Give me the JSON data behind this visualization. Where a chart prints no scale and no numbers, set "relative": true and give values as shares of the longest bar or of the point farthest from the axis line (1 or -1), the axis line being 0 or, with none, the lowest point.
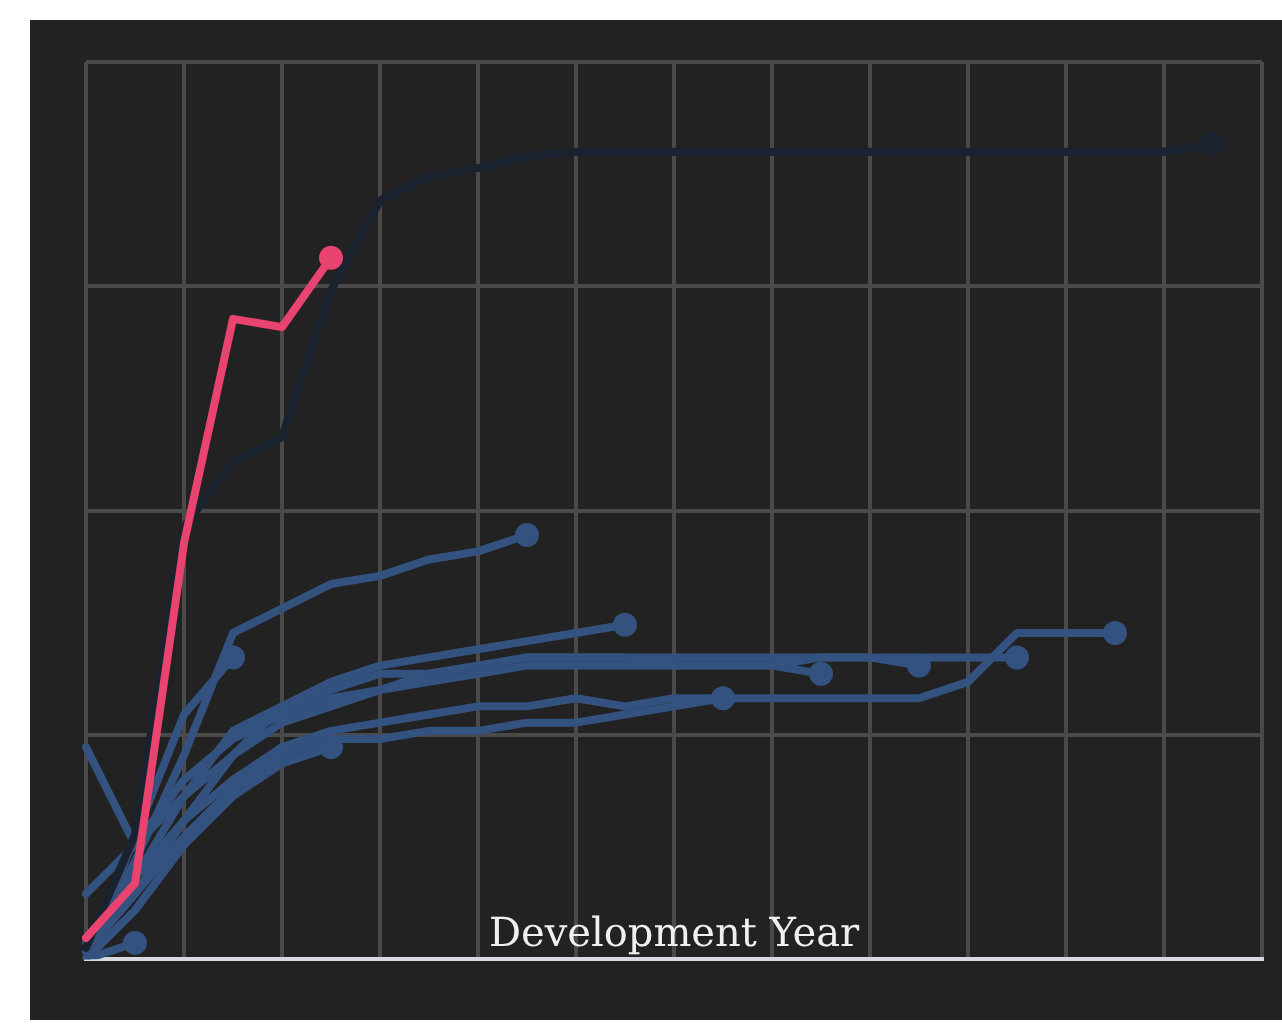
{
  "chart_data": {
    "type": "line",
    "relative": true,
    "xlabel": "Development Year",
    "grid": true,
    "legend": false,
    "line_style": "solid",
    "categories": [
      null,
      null,
      null,
      null,
      null,
      null,
      null,
      null,
      null,
      null,
      null,
      null,
      null,
      null,
      null,
      null,
      null,
      null,
      null,
      null,
      null,
      null,
      null,
      null,
      null
    ],
    "series": [
      {
        "color": "#34527f",
        "values": [
          0.01,
          0.12,
          0.25,
          0.4,
          0.43,
          0.46,
          0.47,
          0.49,
          0.5,
          0.52,
          null,
          null,
          null,
          null,
          null,
          null,
          null,
          null,
          null,
          null,
          null,
          null,
          null,
          null,
          null
        ]
      },
      {
        "color": "#34527f",
        "values": [
          0.01,
          0.08,
          0.17,
          0.25,
          0.31,
          0.34,
          0.36,
          0.37,
          0.38,
          0.39,
          0.4,
          0.41,
          null,
          null,
          null,
          null,
          null,
          null,
          null,
          null,
          null,
          null,
          null,
          null,
          null
        ]
      },
      {
        "color": "#34527f",
        "values": [
          0.0,
          0.15,
          0.3,
          0.37,
          null,
          null,
          null,
          null,
          null,
          null,
          null,
          null,
          null,
          null,
          null,
          null,
          null,
          null,
          null,
          null,
          null,
          null,
          null,
          null,
          null
        ]
      },
      {
        "color": "#34527f",
        "values": [
          0.0,
          0.02,
          null,
          null,
          null,
          null,
          null,
          null,
          null,
          null,
          null,
          null,
          null,
          null,
          null,
          null,
          null,
          null,
          null,
          null,
          null,
          null,
          null,
          null,
          null
        ]
      },
      {
        "color": "#34527f",
        "values": [
          0.0,
          0.06,
          0.14,
          0.2,
          0.24,
          0.26,
          null,
          null,
          null,
          null,
          null,
          null,
          null,
          null,
          null,
          null,
          null,
          null,
          null,
          null,
          null,
          null,
          null,
          null,
          null
        ]
      },
      {
        "color": "#34527f",
        "values": [
          0.01,
          0.08,
          0.15,
          0.21,
          0.25,
          0.27,
          0.27,
          0.28,
          0.28,
          0.29,
          0.29,
          0.3,
          0.31,
          0.32,
          null,
          null,
          null,
          null,
          null,
          null,
          null,
          null,
          null,
          null,
          null
        ]
      },
      {
        "color": "#34527f",
        "values": [
          0.01,
          0.1,
          0.2,
          0.28,
          0.31,
          0.33,
          0.35,
          0.35,
          0.36,
          0.37,
          0.37,
          0.37,
          0.36,
          0.36,
          0.36,
          0.35,
          null,
          null,
          null,
          null,
          null,
          null,
          null,
          null,
          null
        ]
      },
      {
        "color": "#34527f",
        "values": [
          0.08,
          0.14,
          0.22,
          0.27,
          0.3,
          0.32,
          0.33,
          0.34,
          0.35,
          0.36,
          0.36,
          0.36,
          0.36,
          0.36,
          0.36,
          0.37,
          0.37,
          0.36,
          null,
          null,
          null,
          null,
          null,
          null,
          null
        ]
      },
      {
        "color": "#34527f",
        "values": [
          0.26,
          0.14,
          0.2,
          0.25,
          0.29,
          0.31,
          0.33,
          0.35,
          0.36,
          0.37,
          0.37,
          0.37,
          0.37,
          0.37,
          0.37,
          0.37,
          0.37,
          0.37,
          0.37,
          0.37,
          null,
          null,
          null,
          null,
          null
        ]
      },
      {
        "color": "#34527f",
        "values": [
          0.02,
          0.1,
          0.17,
          0.22,
          0.26,
          0.28,
          0.29,
          0.3,
          0.31,
          0.31,
          0.32,
          0.31,
          0.32,
          0.32,
          0.32,
          0.32,
          0.32,
          0.32,
          0.34,
          0.4,
          0.4,
          0.4,
          null,
          null,
          null
        ]
      },
      {
        "color": "#1a2230",
        "values": [
          0.014,
          0.153,
          0.53,
          0.61,
          0.64,
          0.82,
          0.93,
          0.96,
          0.97,
          0.985,
          0.99,
          0.99,
          0.99,
          0.99,
          0.99,
          0.99,
          0.99,
          0.99,
          0.99,
          0.99,
          0.99,
          0.99,
          0.99,
          1.0,
          null
        ]
      },
      {
        "color": "#e8446f",
        "values": [
          0.026,
          0.093,
          0.51,
          0.785,
          0.775,
          0.86,
          null,
          null,
          null,
          null,
          null,
          null,
          null,
          null,
          null,
          null,
          null,
          null,
          null,
          null,
          null,
          null,
          null,
          null,
          null
        ]
      }
    ]
  }
}
